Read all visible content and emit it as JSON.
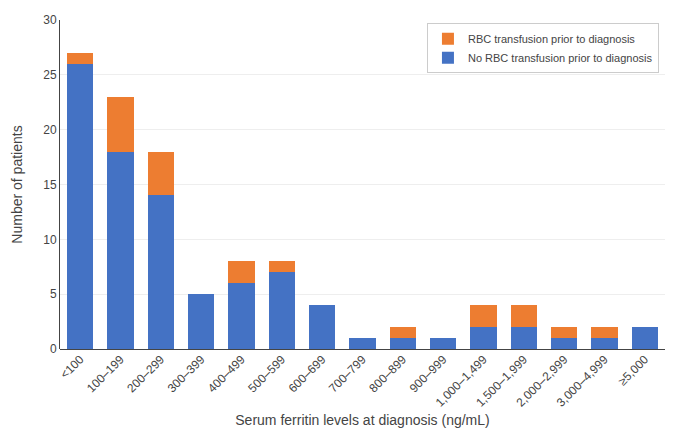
{
  "chart_data": {
    "type": "bar",
    "stacked": true,
    "xlabel": "Serum ferritin levels at diagnosis (ng/mL)",
    "ylabel": "Number of patients",
    "categories": [
      "<100",
      "100–199",
      "200–299",
      "300–399",
      "400–499",
      "500–599",
      "600–699",
      "700–799",
      "800–899",
      "900–999",
      "1,000–1,499",
      "1,500–1,999",
      "2,000–2,999",
      "3,000–4,999",
      "≥5,000"
    ],
    "series": [
      {
        "name": "No RBC transfusion prior to diagnosis",
        "color": "#4472C4",
        "values": [
          26,
          18,
          14,
          5,
          6,
          7,
          4,
          1,
          1,
          1,
          2,
          2,
          1,
          1,
          2
        ]
      },
      {
        "name": "RBC transfusion prior to diagnosis",
        "color": "#ED7D31",
        "values": [
          1,
          5,
          4,
          0,
          2,
          1,
          0,
          0,
          1,
          0,
          2,
          2,
          1,
          1,
          0
        ]
      }
    ],
    "ylim": [
      0,
      30
    ],
    "yticks": [
      0,
      5,
      10,
      15,
      20,
      25,
      30
    ],
    "grid": true,
    "legend": "upper right"
  }
}
